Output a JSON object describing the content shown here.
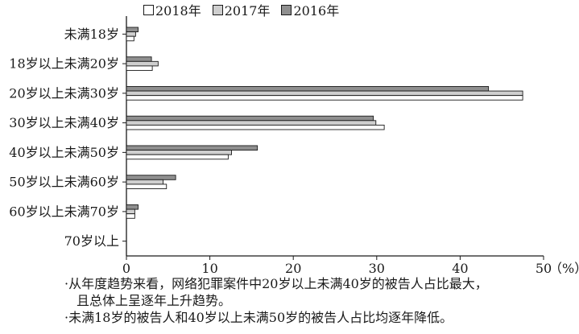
{
  "chart_data": {
    "type": "bar",
    "orientation": "horizontal",
    "categories": [
      "未满18岁",
      "18岁以上未满20岁",
      "20岁以上未满30岁",
      "30岁以上未满40岁",
      "40岁以上未满50岁",
      "50岁以上未满60岁",
      "60岁以上未满70岁",
      "70岁以上"
    ],
    "series": [
      {
        "name": "2018年",
        "color": "#ffffff",
        "values": [
          0.9,
          3.1,
          47.5,
          30.9,
          12.2,
          4.8,
          1.0,
          0.0
        ]
      },
      {
        "name": "2017年",
        "color": "#cfcfcf",
        "values": [
          1.1,
          3.8,
          47.5,
          29.9,
          12.6,
          4.4,
          1.0,
          0.0
        ]
      },
      {
        "name": "2016年",
        "color": "#8f8f8f",
        "values": [
          1.4,
          3.0,
          43.4,
          29.6,
          15.7,
          5.9,
          1.4,
          0.0
        ]
      }
    ],
    "xlim": [
      0,
      50
    ],
    "xticks": [
      "0",
      "10",
      "20",
      "30",
      "40",
      "50"
    ],
    "unit": "（%）",
    "legend_position": "top"
  },
  "notes": [
    "·从年度趋势来看，网络犯罪案件中20岁以上未满40岁的被告人占比最大，",
    "且总体上呈逐年上升趋势。",
    "·未满18岁的被告人和40岁以上未满50岁的被告人占比均逐年降低。"
  ]
}
